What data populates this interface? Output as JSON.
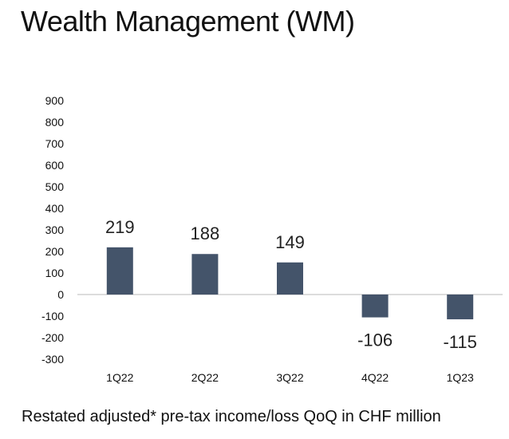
{
  "title": "Wealth Management (WM)",
  "caption": "Restated adjusted* pre-tax income/loss QoQ in CHF million",
  "chart_data": {
    "type": "bar",
    "title": "Wealth Management (WM)",
    "xlabel": "",
    "ylabel": "",
    "categories": [
      "1Q22",
      "2Q22",
      "3Q22",
      "4Q22",
      "1Q23"
    ],
    "values": [
      219,
      188,
      149,
      -106,
      -115
    ],
    "data_labels": [
      "219",
      "188",
      "149",
      "-106",
      "-115"
    ],
    "ylim": [
      -300,
      900
    ],
    "yticks": [
      900,
      800,
      700,
      600,
      500,
      400,
      300,
      200,
      100,
      0,
      -100,
      -200,
      -300
    ],
    "ytick_labels": [
      "900",
      "800",
      "700",
      "600",
      "500",
      "400",
      "300",
      "200",
      "100",
      "0",
      "-100",
      "-200",
      "-300"
    ],
    "grid": false,
    "legend": "none",
    "bar_color": "#44546a",
    "axis_color": "#c8c8c8"
  }
}
